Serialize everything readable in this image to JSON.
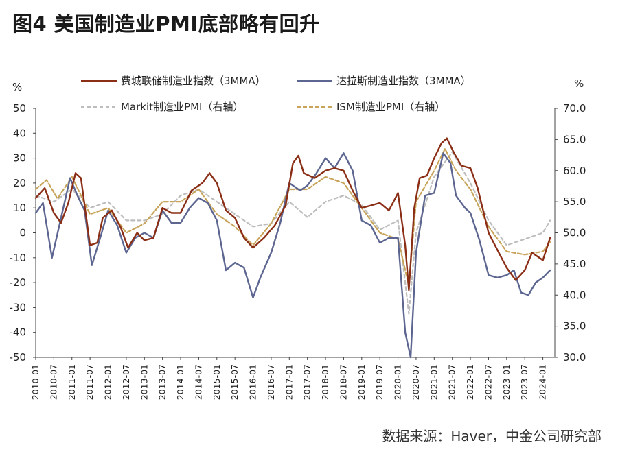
{
  "title": "图4  美国制造业PMI底部略有回升",
  "source": "数据来源：Haver，中金公司研究部",
  "chart_data": {
    "type": "line",
    "left_axis": {
      "unit": "%",
      "min": -50,
      "max": 50,
      "ticks": [
        "50",
        "40",
        "30",
        "20",
        "10",
        "0",
        "-10",
        "-20",
        "-30",
        "-40",
        "-50"
      ]
    },
    "right_axis": {
      "unit": "%",
      "min": 30,
      "max": 70,
      "ticks": [
        "70.0",
        "65.0",
        "60.0",
        "55.0",
        "50.0",
        "45.0",
        "40.0",
        "35.0",
        "30.0"
      ]
    },
    "x_ticks": [
      "2010-01",
      "2010-07",
      "2011-01",
      "2011-07",
      "2012-01",
      "2012-07",
      "2013-01",
      "2013-07",
      "2014-01",
      "2014-07",
      "2015-01",
      "2015-07",
      "2016-01",
      "2016-07",
      "2017-01",
      "2017-07",
      "2018-01",
      "2018-07",
      "2019-01",
      "2019-07",
      "2020-01",
      "2020-07",
      "2021-01",
      "2021-07",
      "2022-01",
      "2022-07",
      "2023-01",
      "2023-07",
      "2024-01"
    ],
    "legend": "top",
    "series": [
      {
        "name": "费城联储制造业指数（3MMA）",
        "axis": "left",
        "color": "#8b2e16",
        "dash": "",
        "points": [
          [
            2010.0,
            14
          ],
          [
            2010.25,
            18
          ],
          [
            2010.5,
            8
          ],
          [
            2010.7,
            4
          ],
          [
            2010.9,
            12
          ],
          [
            2011.1,
            24
          ],
          [
            2011.25,
            22
          ],
          [
            2011.5,
            -5
          ],
          [
            2011.7,
            -4
          ],
          [
            2011.85,
            6
          ],
          [
            2012.1,
            9
          ],
          [
            2012.35,
            2
          ],
          [
            2012.55,
            -6
          ],
          [
            2012.8,
            0
          ],
          [
            2013.0,
            -3
          ],
          [
            2013.25,
            -2
          ],
          [
            2013.5,
            10
          ],
          [
            2013.75,
            8
          ],
          [
            2014.0,
            8
          ],
          [
            2014.3,
            17
          ],
          [
            2014.6,
            20
          ],
          [
            2014.8,
            24
          ],
          [
            2015.0,
            20
          ],
          [
            2015.25,
            9
          ],
          [
            2015.5,
            6
          ],
          [
            2015.75,
            -2
          ],
          [
            2016.0,
            -6
          ],
          [
            2016.3,
            -2
          ],
          [
            2016.6,
            3
          ],
          [
            2016.9,
            11
          ],
          [
            2017.1,
            28
          ],
          [
            2017.25,
            31
          ],
          [
            2017.4,
            24
          ],
          [
            2017.7,
            22
          ],
          [
            2018.0,
            25
          ],
          [
            2018.25,
            26
          ],
          [
            2018.5,
            25
          ],
          [
            2018.75,
            17
          ],
          [
            2019.0,
            10
          ],
          [
            2019.25,
            11
          ],
          [
            2019.5,
            12
          ],
          [
            2019.75,
            9
          ],
          [
            2020.0,
            16
          ],
          [
            2020.2,
            -5
          ],
          [
            2020.3,
            -23
          ],
          [
            2020.45,
            10
          ],
          [
            2020.6,
            22
          ],
          [
            2020.8,
            23
          ],
          [
            2021.0,
            30
          ],
          [
            2021.2,
            36
          ],
          [
            2021.35,
            38
          ],
          [
            2021.55,
            32
          ],
          [
            2021.75,
            27
          ],
          [
            2022.0,
            26
          ],
          [
            2022.2,
            18
          ],
          [
            2022.5,
            0
          ],
          [
            2022.75,
            -7
          ],
          [
            2023.0,
            -14
          ],
          [
            2023.25,
            -19
          ],
          [
            2023.5,
            -15
          ],
          [
            2023.7,
            -8
          ],
          [
            2024.0,
            -11
          ],
          [
            2024.2,
            -2
          ]
        ]
      },
      {
        "name": "达拉斯制造业指数（3MMA）",
        "axis": "left",
        "color": "#5d6690",
        "dash": "",
        "points": [
          [
            2010.0,
            8
          ],
          [
            2010.2,
            12
          ],
          [
            2010.45,
            -10
          ],
          [
            2010.7,
            6
          ],
          [
            2010.95,
            22
          ],
          [
            2011.15,
            15
          ],
          [
            2011.35,
            9
          ],
          [
            2011.55,
            -13
          ],
          [
            2011.8,
            -1
          ],
          [
            2012.0,
            9
          ],
          [
            2012.25,
            3
          ],
          [
            2012.5,
            -8
          ],
          [
            2012.75,
            -2
          ],
          [
            2013.0,
            0
          ],
          [
            2013.25,
            -2
          ],
          [
            2013.5,
            9
          ],
          [
            2013.75,
            4
          ],
          [
            2014.0,
            4
          ],
          [
            2014.25,
            10
          ],
          [
            2014.5,
            14
          ],
          [
            2014.75,
            12
          ],
          [
            2015.0,
            5
          ],
          [
            2015.25,
            -15
          ],
          [
            2015.5,
            -12
          ],
          [
            2015.75,
            -14
          ],
          [
            2016.0,
            -26
          ],
          [
            2016.2,
            -18
          ],
          [
            2016.5,
            -8
          ],
          [
            2016.75,
            4
          ],
          [
            2017.0,
            20
          ],
          [
            2017.3,
            17
          ],
          [
            2017.5,
            19
          ],
          [
            2017.75,
            24
          ],
          [
            2018.0,
            30
          ],
          [
            2018.25,
            26
          ],
          [
            2018.5,
            32
          ],
          [
            2018.75,
            25
          ],
          [
            2019.0,
            5
          ],
          [
            2019.25,
            3
          ],
          [
            2019.5,
            -4
          ],
          [
            2019.75,
            -2
          ],
          [
            2020.0,
            -2
          ],
          [
            2020.2,
            -40
          ],
          [
            2020.35,
            -50
          ],
          [
            2020.5,
            -8
          ],
          [
            2020.75,
            15
          ],
          [
            2021.0,
            16
          ],
          [
            2021.25,
            32
          ],
          [
            2021.45,
            28
          ],
          [
            2021.6,
            15
          ],
          [
            2021.85,
            10
          ],
          [
            2022.0,
            8
          ],
          [
            2022.25,
            -3
          ],
          [
            2022.5,
            -17
          ],
          [
            2022.75,
            -18
          ],
          [
            2023.0,
            -17
          ],
          [
            2023.2,
            -15
          ],
          [
            2023.4,
            -24
          ],
          [
            2023.6,
            -25
          ],
          [
            2023.8,
            -20
          ],
          [
            2024.0,
            -18
          ],
          [
            2024.2,
            -15
          ]
        ]
      },
      {
        "name": "Markit制造业PMI（右轴）",
        "axis": "right",
        "color": "#bdbdbd",
        "dash": "5,4",
        "points": [
          [
            2010.0,
            56
          ],
          [
            2010.5,
            55
          ],
          [
            2011.0,
            57
          ],
          [
            2011.5,
            54
          ],
          [
            2012.0,
            55
          ],
          [
            2012.5,
            52
          ],
          [
            2013.0,
            52
          ],
          [
            2013.5,
            53
          ],
          [
            2014.0,
            56
          ],
          [
            2014.5,
            57
          ],
          [
            2015.0,
            55
          ],
          [
            2015.5,
            53
          ],
          [
            2016.0,
            51
          ],
          [
            2016.5,
            51.5
          ],
          [
            2017.0,
            55
          ],
          [
            2017.5,
            52.5
          ],
          [
            2018.0,
            55
          ],
          [
            2018.5,
            56
          ],
          [
            2019.0,
            54.5
          ],
          [
            2019.5,
            50.5
          ],
          [
            2020.0,
            52
          ],
          [
            2020.3,
            37
          ],
          [
            2020.5,
            50
          ],
          [
            2021.0,
            59
          ],
          [
            2021.5,
            63
          ],
          [
            2022.0,
            58
          ],
          [
            2022.5,
            52
          ],
          [
            2023.0,
            48
          ],
          [
            2023.5,
            49
          ],
          [
            2024.0,
            50
          ],
          [
            2024.2,
            52
          ]
        ]
      },
      {
        "name": "ISM制造业PMI（右轴）",
        "axis": "right",
        "color": "#c8a45a",
        "dash": "6,3",
        "points": [
          [
            2010.0,
            57
          ],
          [
            2010.3,
            58.5
          ],
          [
            2010.6,
            55.5
          ],
          [
            2011.0,
            59
          ],
          [
            2011.5,
            53
          ],
          [
            2012.0,
            54
          ],
          [
            2012.5,
            50
          ],
          [
            2013.0,
            51.5
          ],
          [
            2013.5,
            55
          ],
          [
            2014.0,
            55
          ],
          [
            2014.5,
            57
          ],
          [
            2015.0,
            53
          ],
          [
            2015.5,
            51
          ],
          [
            2016.0,
            48
          ],
          [
            2016.5,
            51.5
          ],
          [
            2017.0,
            57
          ],
          [
            2017.5,
            57
          ],
          [
            2018.0,
            59
          ],
          [
            2018.5,
            58
          ],
          [
            2019.0,
            54
          ],
          [
            2019.5,
            50
          ],
          [
            2020.0,
            49
          ],
          [
            2020.3,
            41.5
          ],
          [
            2020.5,
            55
          ],
          [
            2021.0,
            60
          ],
          [
            2021.3,
            63.5
          ],
          [
            2021.6,
            60
          ],
          [
            2022.0,
            57
          ],
          [
            2022.5,
            51
          ],
          [
            2023.0,
            47
          ],
          [
            2023.5,
            46.5
          ],
          [
            2024.0,
            47
          ],
          [
            2024.2,
            48.5
          ]
        ]
      }
    ]
  }
}
